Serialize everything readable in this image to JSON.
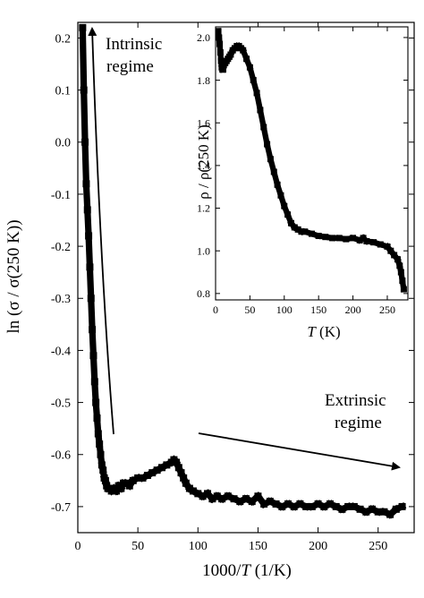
{
  "chart_data": [
    {
      "type": "scatter",
      "xlabel_prefix": "1000/",
      "xlabel_var": "T",
      "xlabel_suffix": " (1/K)",
      "ylabel": "ln (σ / σ(250 K))",
      "xlim": [
        0,
        280
      ],
      "ylim": [
        -0.75,
        0.23
      ],
      "xticks": [
        0,
        50,
        100,
        150,
        200,
        250
      ],
      "yticks": [
        0.2,
        0.1,
        0.0,
        -0.1,
        -0.2,
        -0.3,
        -0.4,
        -0.5,
        -0.6,
        -0.7
      ],
      "ytick_labels": [
        "0.2",
        "0.1",
        "0.0",
        "-0.1",
        "-0.2",
        "-0.3",
        "-0.4",
        "-0.5",
        "-0.6",
        "-0.7"
      ],
      "annotations": [
        {
          "text_lines": [
            "Intrinsic",
            "regime"
          ]
        },
        {
          "text_lines": [
            "Extrinsic",
            "regime"
          ]
        }
      ],
      "series": [
        {
          "marker": "square",
          "color": "#000000",
          "x": [
            4,
            5,
            6,
            7,
            8,
            9,
            10,
            11,
            12,
            13,
            14,
            15,
            16,
            17,
            18,
            19,
            20,
            21,
            22,
            23,
            24,
            25,
            26,
            28,
            30,
            32,
            34,
            36,
            38,
            40,
            43,
            46,
            50,
            54,
            58,
            62,
            66,
            70,
            74,
            78,
            80,
            82,
            84,
            86,
            88,
            90,
            93,
            96,
            100,
            104,
            108,
            112,
            116,
            120,
            125,
            130,
            135,
            140,
            145,
            150,
            155,
            160,
            165,
            170,
            175,
            180,
            185,
            190,
            195,
            200,
            205,
            210,
            215,
            220,
            225,
            230,
            235,
            240,
            245,
            250,
            255,
            260,
            265,
            270
          ],
          "y": [
            0.22,
            0.1,
            0.0,
            -0.08,
            -0.13,
            -0.18,
            -0.24,
            -0.3,
            -0.36,
            -0.41,
            -0.46,
            -0.5,
            -0.53,
            -0.56,
            -0.58,
            -0.6,
            -0.62,
            -0.63,
            -0.645,
            -0.65,
            -0.66,
            -0.665,
            -0.665,
            -0.67,
            -0.665,
            -0.67,
            -0.66,
            -0.665,
            -0.655,
            -0.655,
            -0.66,
            -0.65,
            -0.645,
            -0.645,
            -0.64,
            -0.635,
            -0.63,
            -0.625,
            -0.62,
            -0.615,
            -0.61,
            -0.615,
            -0.625,
            -0.635,
            -0.645,
            -0.655,
            -0.665,
            -0.67,
            -0.675,
            -0.68,
            -0.675,
            -0.685,
            -0.68,
            -0.685,
            -0.68,
            -0.685,
            -0.69,
            -0.685,
            -0.69,
            -0.68,
            -0.695,
            -0.69,
            -0.695,
            -0.7,
            -0.695,
            -0.7,
            -0.695,
            -0.7,
            -0.7,
            -0.695,
            -0.7,
            -0.695,
            -0.7,
            -0.705,
            -0.7,
            -0.7,
            -0.705,
            -0.71,
            -0.705,
            -0.71,
            -0.71,
            -0.715,
            -0.705,
            -0.7
          ]
        }
      ]
    },
    {
      "type": "scatter",
      "xlabel_var": "T",
      "xlabel_suffix": " (K)",
      "ylabel": "ρ / ρ(250 K)",
      "xlim": [
        0,
        280
      ],
      "ylim": [
        0.77,
        2.05
      ],
      "xticks": [
        0,
        50,
        100,
        150,
        200,
        250
      ],
      "yticks": [
        0.8,
        1.0,
        1.2,
        1.4,
        1.6,
        1.8,
        2.0
      ],
      "ytick_labels": [
        "0.8",
        "1.0",
        "1.2",
        "1.4",
        "1.6",
        "1.8",
        "2.0"
      ],
      "series": [
        {
          "marker": "square",
          "color": "#000000",
          "x": [
            4,
            5,
            6,
            7,
            8,
            9,
            10,
            11,
            12,
            14,
            16,
            18,
            20,
            22,
            25,
            28,
            31,
            34,
            37,
            40,
            45,
            50,
            55,
            60,
            65,
            70,
            75,
            80,
            85,
            90,
            95,
            100,
            105,
            110,
            115,
            120,
            125,
            130,
            140,
            150,
            160,
            170,
            180,
            190,
            200,
            210,
            215,
            220,
            230,
            240,
            250,
            255,
            260,
            265,
            268,
            270,
            272,
            274
          ],
          "y": [
            2.03,
            2.0,
            1.97,
            1.93,
            1.89,
            1.86,
            1.85,
            1.85,
            1.87,
            1.88,
            1.89,
            1.9,
            1.91,
            1.92,
            1.94,
            1.95,
            1.96,
            1.96,
            1.95,
            1.94,
            1.9,
            1.86,
            1.8,
            1.74,
            1.66,
            1.58,
            1.5,
            1.43,
            1.37,
            1.31,
            1.26,
            1.21,
            1.17,
            1.13,
            1.11,
            1.1,
            1.09,
            1.09,
            1.08,
            1.07,
            1.065,
            1.06,
            1.06,
            1.055,
            1.06,
            1.05,
            1.06,
            1.045,
            1.04,
            1.03,
            1.02,
            1.0,
            0.98,
            0.96,
            0.93,
            0.9,
            0.86,
            0.82
          ]
        }
      ]
    }
  ]
}
